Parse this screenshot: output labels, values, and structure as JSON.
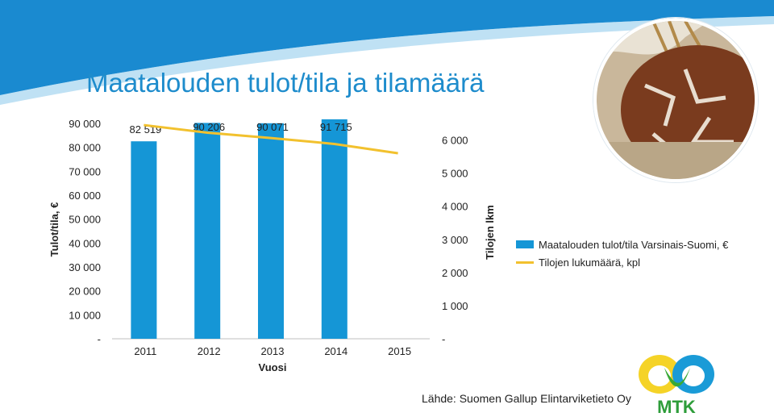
{
  "title": "Maatalouden tulot/tila ja tilamäärä",
  "source": "Lähde: Suomen Gallup Elintarviketieto Oy",
  "logo_text": "MTK",
  "photo_icon": "bread-photo",
  "colors": {
    "bar": "#1596d6",
    "line": "#f2c12e",
    "title": "#1e8ccc",
    "accent_bg": "#1a8ad0"
  },
  "chart_data": {
    "type": "bar",
    "categories": [
      "2011",
      "2012",
      "2013",
      "2014",
      "2015"
    ],
    "xlabel": "Vuosi",
    "ylabel": "Tulot/tila, €",
    "y2label": "Tilojen lkm",
    "ylim": [
      0,
      90000
    ],
    "y2lim": [
      0,
      6500
    ],
    "y_ticks": [
      "90 000",
      "80 000",
      "70 000",
      "60 000",
      "50 000",
      "40 000",
      "30 000",
      "20 000",
      "10 000",
      "-"
    ],
    "y2_ticks": [
      "6 000",
      "5 000",
      "4 000",
      "3 000",
      "2 000",
      "1 000",
      "-"
    ],
    "grid": false,
    "legend_position": "right",
    "series": [
      {
        "name": "Maatalouden tulot/tila Varsinais-Suomi, €",
        "type": "bar",
        "axis": "left",
        "values": [
          82519,
          90206,
          90071,
          91715,
          null
        ],
        "labels": [
          "82 519",
          "90 206",
          "90 071",
          "91 715",
          ""
        ]
      },
      {
        "name": "Tilojen lukumäärä, kpl",
        "type": "line",
        "axis": "right",
        "values": [
          6450,
          6220,
          6060,
          5880,
          5600
        ]
      }
    ]
  }
}
